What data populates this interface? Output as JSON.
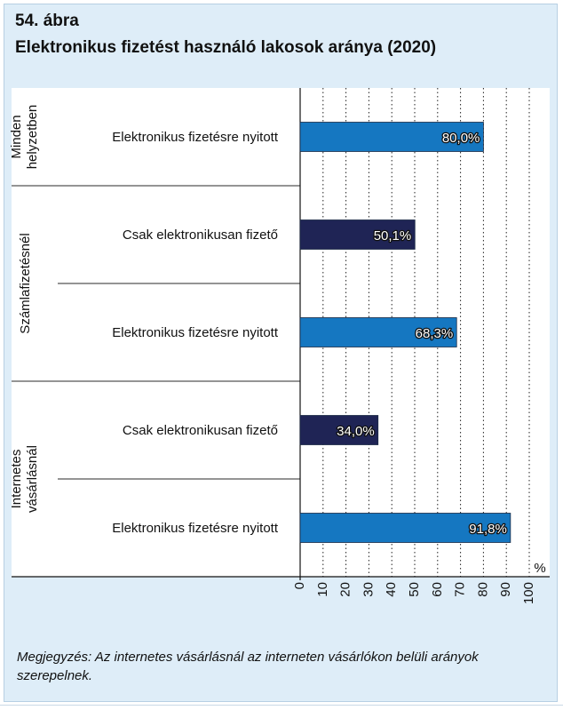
{
  "figure": {
    "number": "54. ábra",
    "title": "Elektronikus fizetést használó lakosok aránya (2020)",
    "note": "Megjegyzés: Az internetes vásárlásnál az interneten vásárlókon belüli arányok szerepelnek."
  },
  "chart_data": {
    "type": "bar",
    "orientation": "horizontal",
    "groups": [
      {
        "label_lines": [
          "Minden",
          "helyzetben"
        ],
        "rows": [
          0
        ]
      },
      {
        "label_lines": [
          "Számlafizetésnél"
        ],
        "rows": [
          1,
          2
        ]
      },
      {
        "label_lines": [
          "Internetes",
          "vásárlásnál"
        ],
        "rows": [
          3,
          4
        ]
      }
    ],
    "categories": [
      "Elektronikus fizetésre nyitott",
      "Csak elektronikusan fizető",
      "Elektronikus fizetésre nyitott",
      "Csak elektronikusan fizető",
      "Elektronikus fizetésre nyitott"
    ],
    "values": [
      80.0,
      50.1,
      68.3,
      34.0,
      91.8
    ],
    "value_labels": [
      "80,0%",
      "50,1%",
      "68,3%",
      "34,0%",
      "91,8%"
    ],
    "bar_colors": [
      "#1577c1",
      "#1f2455",
      "#1577c1",
      "#1f2455",
      "#1577c1"
    ],
    "xlim": [
      0,
      100
    ],
    "xticks": [
      "0",
      "10",
      "20",
      "30",
      "40",
      "50",
      "60",
      "70",
      "80",
      "90",
      "100"
    ],
    "xlabel": "%",
    "grid": "vertical dotted"
  }
}
